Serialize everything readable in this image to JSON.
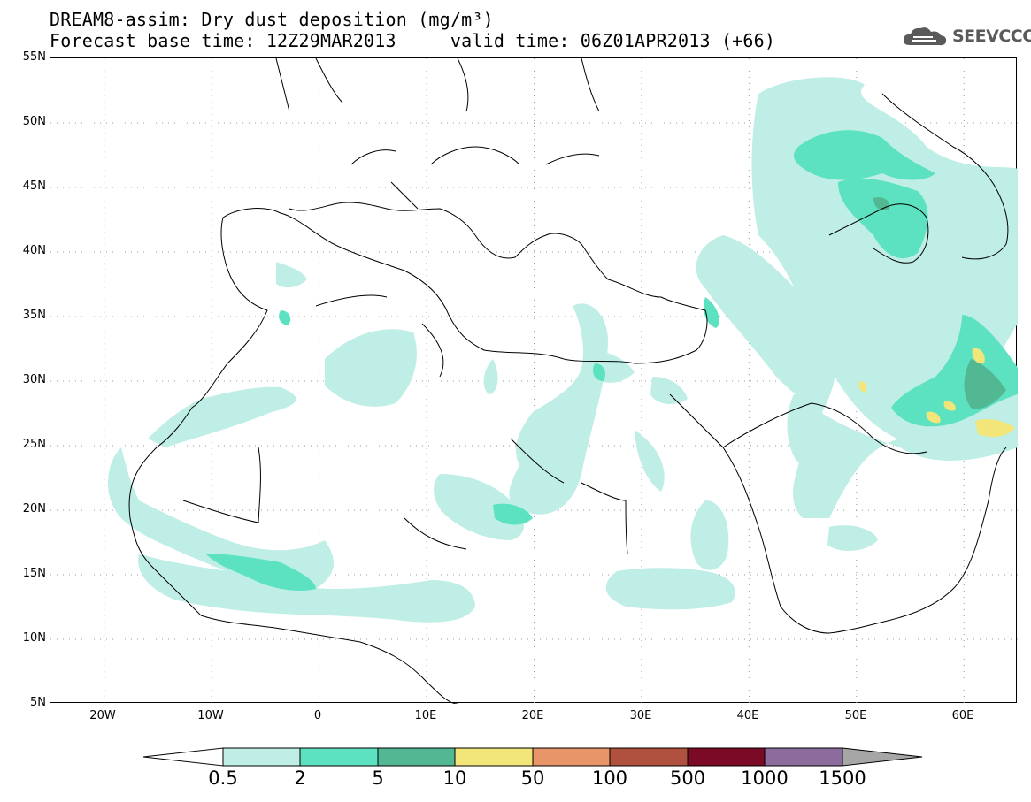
{
  "title": {
    "line1": "DREAM8-assim: Dry dust deposition (mg/m³)",
    "line2": "Forecast base time: 12Z29MAR2013     valid time: 06Z01APR2013 (+66)"
  },
  "logo": {
    "icon": "cloud-icon",
    "text": "SEEVCCC"
  },
  "map": {
    "lat_labels": [
      "55N",
      "50N",
      "45N",
      "40N",
      "35N",
      "30N",
      "25N",
      "20N",
      "15N",
      "10N",
      "5N"
    ],
    "lon_labels": [
      "20W",
      "10W",
      "0",
      "10E",
      "20E",
      "30E",
      "40E",
      "50E",
      "60E"
    ],
    "lat_range": [
      5,
      55
    ],
    "lon_range": [
      -25,
      65
    ],
    "grid": "dotted"
  },
  "legend": {
    "labels": [
      "0.5",
      "2",
      "5",
      "10",
      "50",
      "100",
      "500",
      "1000",
      "1500"
    ],
    "colors": [
      "#bfeee6",
      "#5ce2c0",
      "#52b893",
      "#f2e67a",
      "#e8956a",
      "#b0503e",
      "#7a0a26",
      "#8c6b9d",
      "#a6a6a6"
    ],
    "low_arrow_color": "#ffffff",
    "high_arrow_color": "#a6a6a6"
  },
  "colors": {
    "light_dust": "#bfeee6",
    "mid_dust": "#5ce2c0",
    "high_dust": "#52b893",
    "peak_dust": "#f2e67a"
  }
}
